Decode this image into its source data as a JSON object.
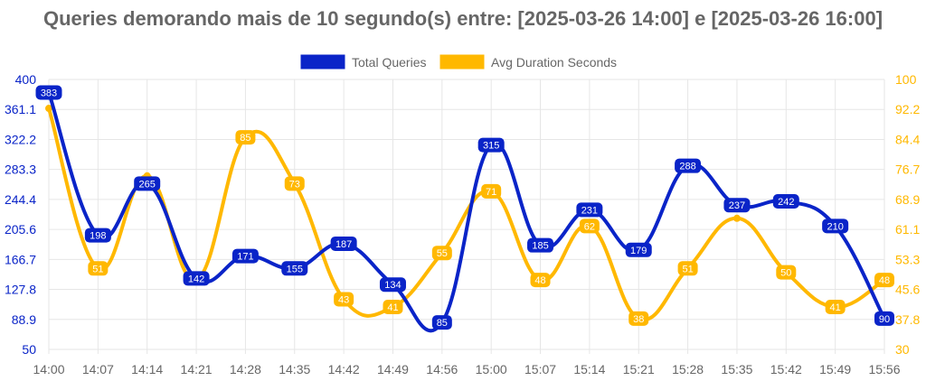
{
  "chart_data": {
    "type": "line",
    "title": "Queries demorando mais de 10 segundo(s) entre: [2025-03-26 14:00] e [2025-03-26 16:00]",
    "categories": [
      "14:00",
      "14:07",
      "14:14",
      "14:21",
      "14:28",
      "14:35",
      "14:42",
      "14:49",
      "14:56",
      "15:00",
      "15:07",
      "15:14",
      "15:21",
      "15:28",
      "15:35",
      "15:42",
      "15:49",
      "15:56"
    ],
    "series": [
      {
        "name": "Total Queries",
        "color": "#0a24c8",
        "axis": "left",
        "values": [
          383,
          198,
          265,
          142,
          171,
          155,
          187,
          134,
          85,
          315,
          185,
          231,
          179,
          288,
          237,
          242,
          210,
          90
        ],
        "labels": [
          "383",
          "198",
          "265",
          "142",
          "171",
          "155",
          "187",
          "134",
          "85",
          "315",
          "185",
          "231",
          "179",
          "288",
          "237",
          "242",
          "210",
          "90"
        ]
      },
      {
        "name": "Avg Duration Seconds",
        "color": "#ffb800",
        "axis": "right",
        "values": [
          92.5,
          51,
          75,
          48,
          85,
          73,
          43,
          41,
          55,
          71,
          48,
          62,
          38,
          51,
          64,
          50,
          41,
          48
        ],
        "labels": [
          "",
          "51",
          "",
          "",
          "85",
          "73",
          "43",
          "41",
          "55",
          "71",
          "48",
          "62",
          "38",
          "51",
          "",
          "50",
          "41",
          "48"
        ]
      }
    ],
    "y_left": {
      "min": 50,
      "max": 400,
      "ticks": [
        "400",
        "361.1",
        "322.2",
        "283.3",
        "244.4",
        "205.6",
        "166.7",
        "127.8",
        "88.9",
        "50"
      ],
      "color": "#0a24c8"
    },
    "y_right": {
      "min": 30,
      "max": 100,
      "ticks": [
        "100",
        "92.2",
        "84.4",
        "76.7",
        "68.9",
        "61.1",
        "53.3",
        "45.6",
        "37.8",
        "30"
      ],
      "color": "#ffb800"
    },
    "grid": true,
    "legend_position": "top-center"
  }
}
